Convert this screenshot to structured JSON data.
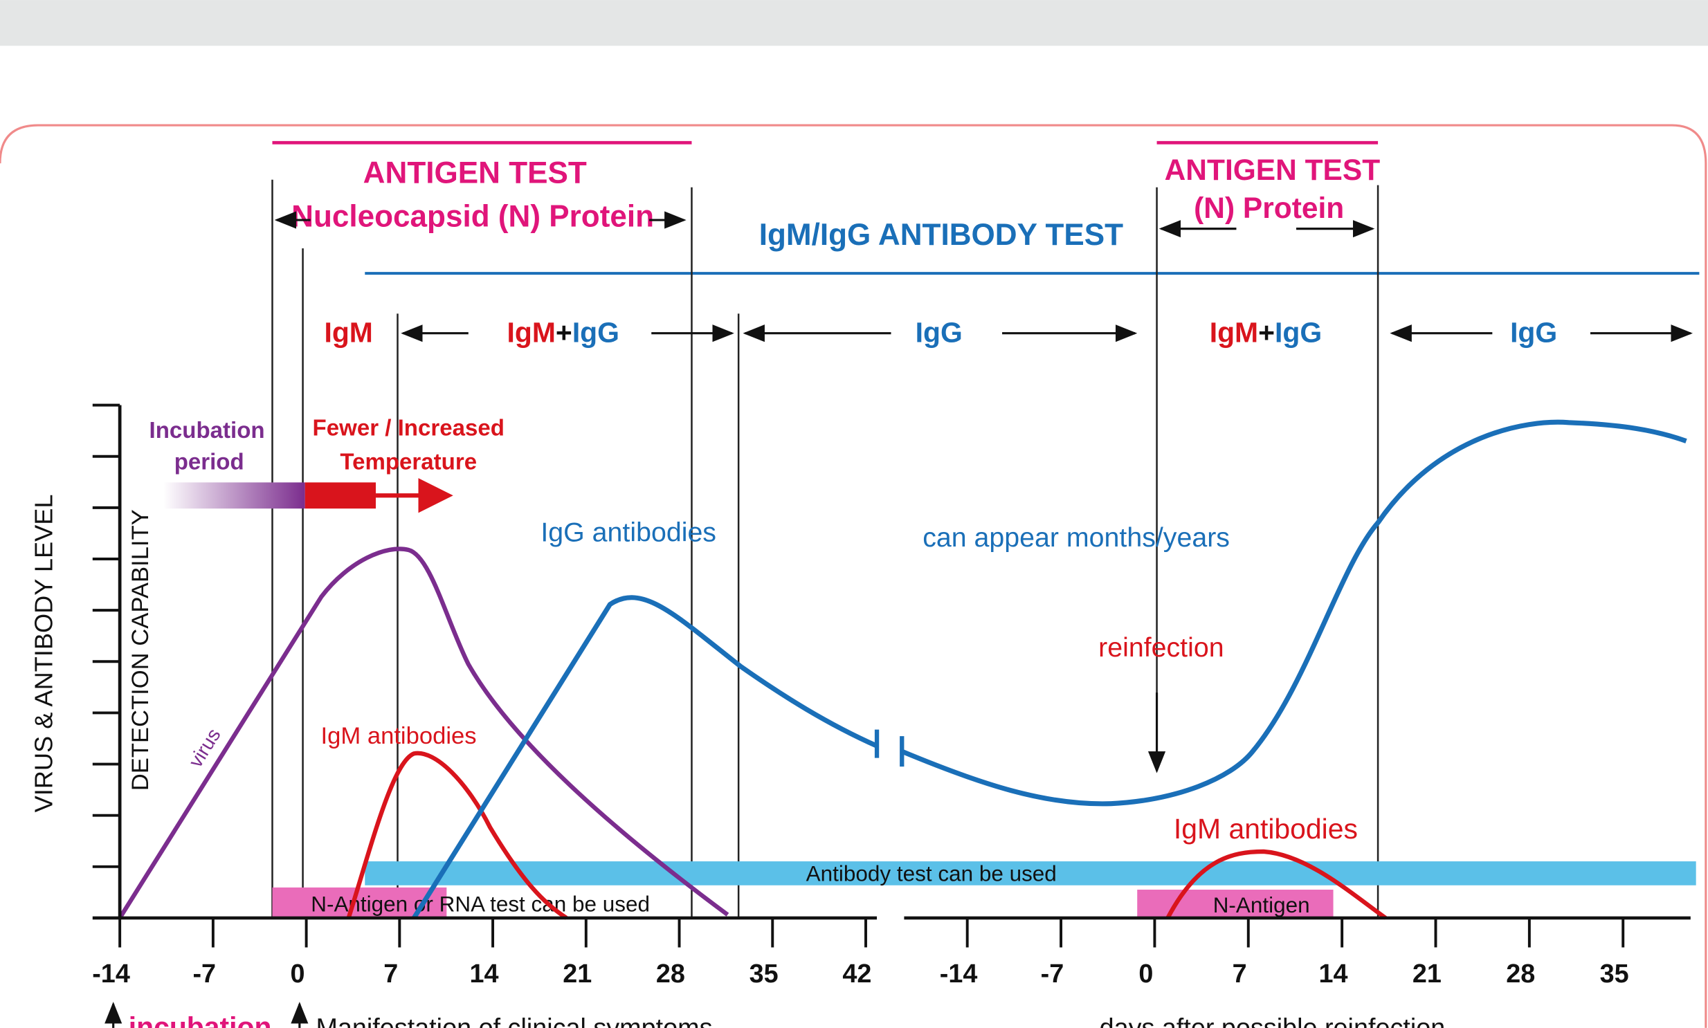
{
  "top_labels": {
    "antigen_test_1": {
      "title": "ANTIGEN TEST",
      "subtitle": "Nucleocapsid (N) Protein"
    },
    "antibody_test": "IgM/IgG ANTIBODY  TEST",
    "antigen_test_2": {
      "title": "ANTIGEN TEST",
      "subtitle": "(N) Protein"
    }
  },
  "phases": [
    [
      "IgM"
    ],
    [
      "IgM",
      "+",
      "IgG"
    ],
    [
      "IgG"
    ],
    [
      "IgM",
      "+",
      "IgG"
    ],
    [
      "IgG"
    ]
  ],
  "annotations": {
    "incubation": [
      "Incubation",
      "period"
    ],
    "temperature": [
      "Fewer / Increased",
      "Temperature"
    ],
    "igg_antibodies": "IgG antibodies",
    "months_years": "can appear months/years",
    "reinfection": "reinfection",
    "igm_antibodies_1": "IgM antibodies",
    "igm_antibodies_2": "IgM antibodies",
    "virus": "virus",
    "antibody_test_bar": "Antibody test can be used",
    "n_antigen_bar_1": "N-Antigen or RNA test can be used",
    "n_antigen_bar_2": "N-Antigen"
  },
  "y_axis": {
    "labels": [
      "VIRUS & ANTIBODY LEVEL",
      "DETECTION CAPABILITY"
    ]
  },
  "x_axis": {
    "first": [
      -14,
      -7,
      0,
      7,
      14,
      21,
      28,
      35,
      42
    ],
    "second": [
      -14,
      -7,
      0,
      7,
      14,
      21,
      28,
      35
    ]
  },
  "footer": {
    "incubation": "incubation",
    "symptoms": "Manifestation of clinical symptoms",
    "reinfection_days": "days after possible reinfection"
  }
}
